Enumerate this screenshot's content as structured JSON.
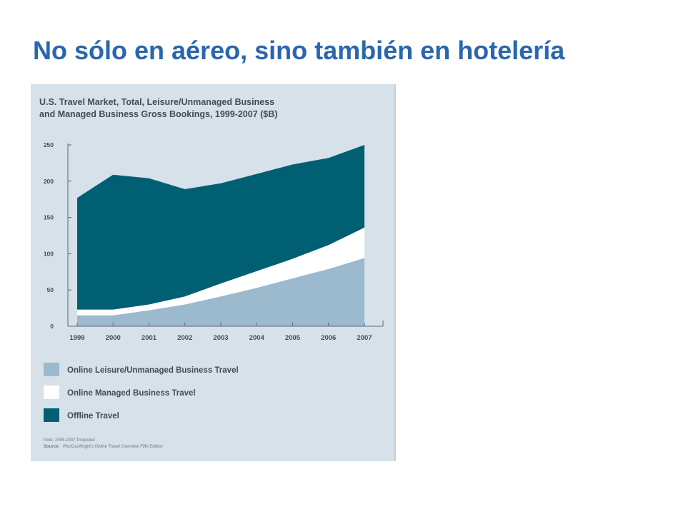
{
  "slide": {
    "title": "No sólo en aéreo, sino también en hotelería"
  },
  "chart_data": {
    "type": "area",
    "stacked": true,
    "title_lines": [
      "U.S. Travel Market, Total, Leisure/Unmanaged Business",
      "and Managed Business Gross Bookings, 1999-2007 ($B)"
    ],
    "x": [
      "1999",
      "2000",
      "2001",
      "2002",
      "2003",
      "2004",
      "2005",
      "2006",
      "2007"
    ],
    "ylim": [
      0,
      250
    ],
    "yticks": [
      0,
      50,
      100,
      150,
      200,
      250
    ],
    "grid": false,
    "legend_position": "bottom",
    "series": [
      {
        "name": "Online Leisure/Unmanaged Business Travel",
        "color": "#9bbacd",
        "values": [
          15,
          15,
          22,
          30,
          41,
          53,
          66,
          79,
          94
        ]
      },
      {
        "name": "Online Managed Business Travel",
        "color": "#ffffff",
        "values": [
          8,
          8,
          8,
          11,
          18,
          23,
          27,
          33,
          42
        ]
      },
      {
        "name": "Offline Travel",
        "color": "#005f73",
        "values": [
          154,
          186,
          174,
          148,
          138,
          134,
          130,
          120,
          114
        ]
      }
    ],
    "note": "Note: 2005-2007 Projected",
    "source_label": "Source:",
    "source_text": "PhoCusWright's Online Travel Overview Fifth Edition"
  },
  "colors": {
    "title": "#2a66ad",
    "figure_background": "#d6e1e9",
    "figure_text": "#3d4f5c"
  }
}
